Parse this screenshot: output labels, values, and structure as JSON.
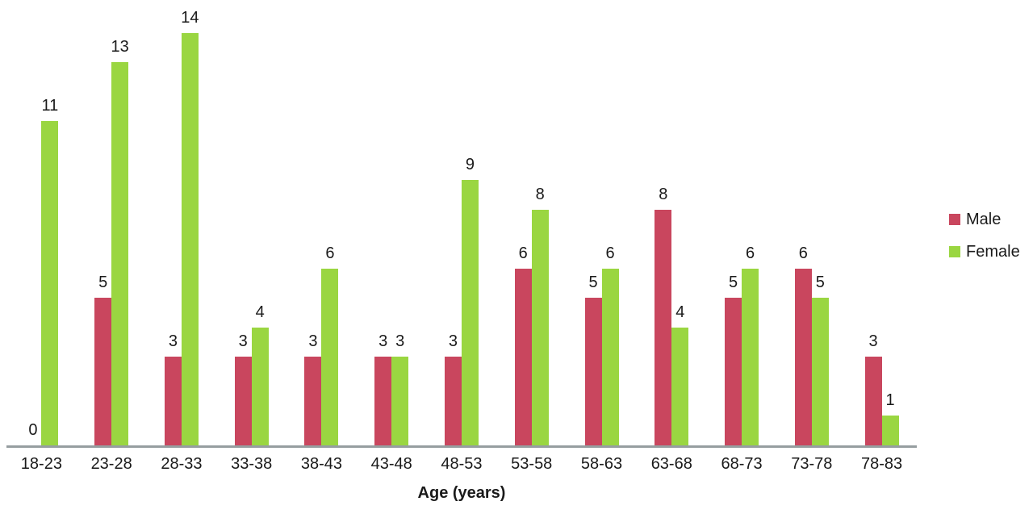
{
  "chart_data": {
    "type": "bar",
    "title": "",
    "xlabel": "Age (years)",
    "ylabel": "",
    "categories": [
      "18-23",
      "23-28",
      "28-33",
      "33-38",
      "38-43",
      "43-48",
      "48-53",
      "53-58",
      "58-63",
      "63-68",
      "68-73",
      "73-78",
      "78-83"
    ],
    "series": [
      {
        "name": "Male",
        "color": "#C9465E",
        "values": [
          0,
          5,
          3,
          3,
          3,
          3,
          3,
          6,
          5,
          8,
          5,
          6,
          3
        ]
      },
      {
        "name": "Female",
        "color": "#9AD641",
        "values": [
          11,
          13,
          14,
          4,
          6,
          3,
          9,
          8,
          6,
          4,
          6,
          5,
          1
        ]
      }
    ],
    "ylim": [
      0,
      14
    ],
    "grid": false,
    "value_labels_shown": true,
    "legend_position": "right",
    "axis_line_color": "#969EA0",
    "text_color": "#1a1a1a"
  }
}
